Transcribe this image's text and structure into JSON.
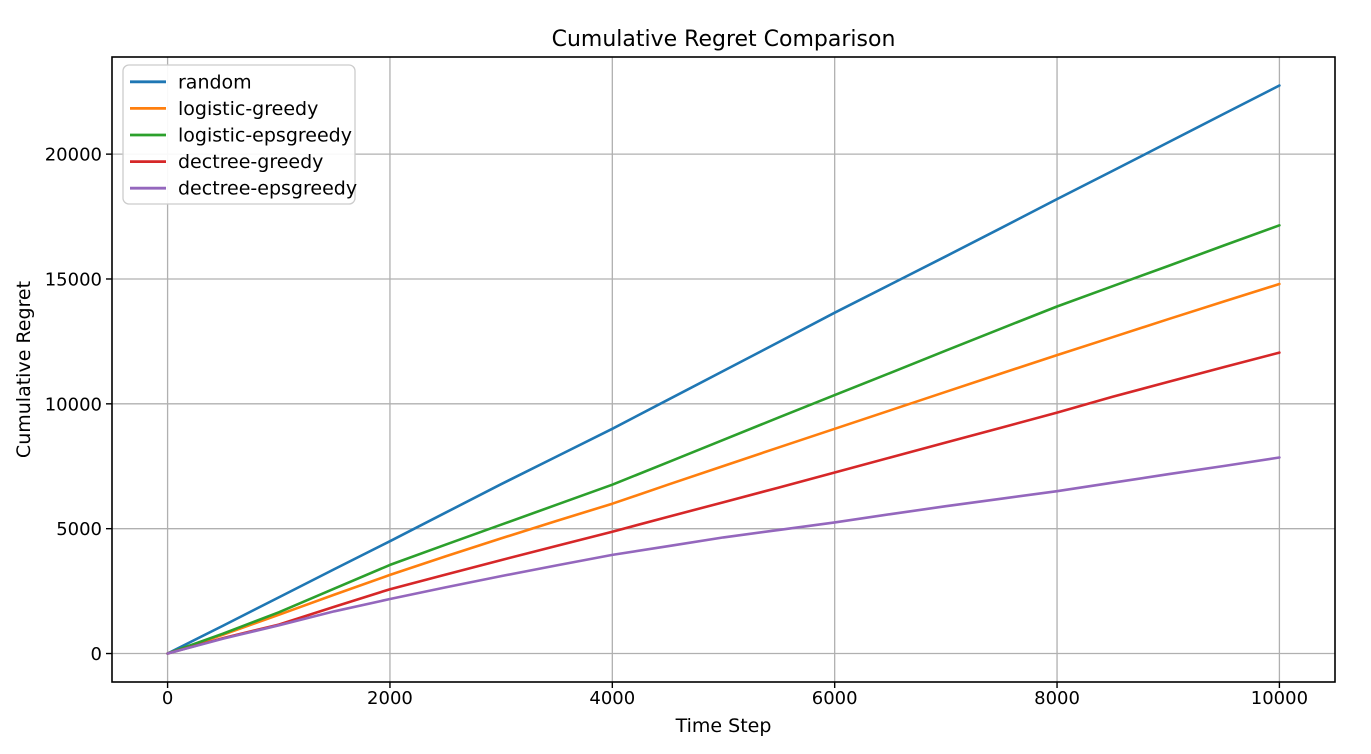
{
  "figure": {
    "background": "#ffffff"
  },
  "chart_data": {
    "type": "line",
    "title": "Cumulative Regret Comparison",
    "xlabel": "Time Step",
    "ylabel": "Cumulative Regret",
    "xlim": [
      -500,
      10500
    ],
    "ylim": [
      -1140,
      23890
    ],
    "xticks": [
      0,
      2000,
      4000,
      6000,
      8000,
      10000
    ],
    "yticks": [
      0,
      5000,
      10000,
      15000,
      20000
    ],
    "grid": true,
    "grid_color": "#b0b0b0",
    "axis_color": "#000000",
    "legend_position": "upper left",
    "x": [
      0,
      500,
      1000,
      1500,
      2000,
      2500,
      3000,
      3500,
      4000,
      4500,
      5000,
      5500,
      6000,
      6500,
      7000,
      7500,
      8000,
      8500,
      9000,
      9500,
      10000
    ],
    "series": [
      {
        "name": "random",
        "color": "#1f77b4",
        "values": [
          0,
          1120,
          2250,
          3380,
          4500,
          5640,
          6780,
          7890,
          9000,
          10160,
          11320,
          12480,
          13650,
          14780,
          15910,
          17050,
          18200,
          19330,
          20470,
          21610,
          22750
        ]
      },
      {
        "name": "logistic-greedy",
        "color": "#ff7f0e",
        "values": [
          0,
          760,
          1550,
          2360,
          3150,
          3890,
          4610,
          5310,
          6000,
          6760,
          7510,
          8260,
          9000,
          9740,
          10480,
          11220,
          11950,
          12670,
          13390,
          14100,
          14800
        ]
      },
      {
        "name": "logistic-epsgreedy",
        "color": "#2ca02c",
        "values": [
          0,
          800,
          1650,
          2600,
          3550,
          4360,
          5160,
          5960,
          6760,
          7660,
          8560,
          9460,
          10350,
          11240,
          12130,
          13020,
          13900,
          14710,
          15520,
          16340,
          17150
        ]
      },
      {
        "name": "dectree-greedy",
        "color": "#d62728",
        "values": [
          0,
          620,
          1160,
          1870,
          2575,
          3160,
          3740,
          4310,
          4880,
          5470,
          6060,
          6650,
          7250,
          7850,
          8450,
          9050,
          9650,
          10280,
          10880,
          11470,
          12050
        ]
      },
      {
        "name": "dectree-epsgreedy",
        "color": "#9467bd",
        "values": [
          0,
          600,
          1130,
          1690,
          2185,
          2650,
          3100,
          3530,
          3950,
          4300,
          4650,
          4950,
          5250,
          5580,
          5900,
          6200,
          6500,
          6840,
          7180,
          7510,
          7850
        ]
      }
    ]
  }
}
